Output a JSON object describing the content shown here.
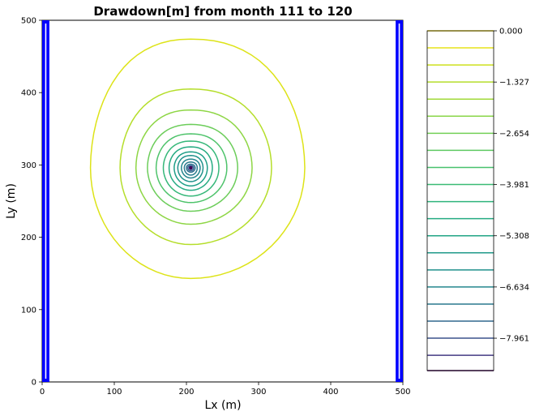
{
  "chart_data": {
    "type": "contour",
    "title": "Drawdown[m] from month 111 to 120",
    "xlabel": "Lx (m)",
    "ylabel": "Ly (m)",
    "xlim": [
      0,
      500
    ],
    "ylim": [
      0,
      500
    ],
    "x_ticks": [
      "0",
      "100",
      "200",
      "300",
      "400",
      "500"
    ],
    "y_ticks": [
      "0",
      "100",
      "200",
      "300",
      "400",
      "500"
    ],
    "well_center": {
      "x": 206,
      "y": 296
    },
    "boundaries": [
      {
        "x_from": 0,
        "x_to": 10,
        "color": "#0000ff"
      },
      {
        "x_from": 490,
        "x_to": 500,
        "color": "#0000ff"
      }
    ],
    "contours": [
      {
        "level": -0.4,
        "xmin": 67,
        "xmax": 364,
        "ymin": 143,
        "ymax": 474,
        "color": "#dde318"
      },
      {
        "level": -0.8,
        "xmin": 108,
        "xmax": 318,
        "ymin": 190,
        "ymax": 405,
        "color": "#b5de2b"
      },
      {
        "level": -1.2,
        "xmin": 130,
        "xmax": 291,
        "ymin": 218,
        "ymax": 376,
        "color": "#8ed645"
      },
      {
        "level": -1.6,
        "xmin": 146,
        "xmax": 271,
        "ymin": 236,
        "ymax": 356,
        "color": "#6ccd5a"
      },
      {
        "level": -2.0,
        "xmin": 158,
        "xmax": 256,
        "ymin": 248,
        "ymax": 343,
        "color": "#4ec36b"
      },
      {
        "level": -2.4,
        "xmin": 168,
        "xmax": 245,
        "ymin": 257,
        "ymax": 333,
        "color": "#35b779"
      },
      {
        "level": -2.9,
        "xmin": 176,
        "xmax": 236,
        "ymin": 265,
        "ymax": 325,
        "color": "#25ab82"
      },
      {
        "level": -3.4,
        "xmin": 183,
        "xmax": 229,
        "ymin": 271,
        "ymax": 318,
        "color": "#1f9f88"
      },
      {
        "level": -4.0,
        "xmin": 188,
        "xmax": 223,
        "ymin": 277,
        "ymax": 313,
        "color": "#20928c"
      },
      {
        "level": -4.6,
        "xmin": 193,
        "xmax": 219,
        "ymin": 282,
        "ymax": 308,
        "color": "#24868e"
      },
      {
        "level": -5.3,
        "xmin": 197,
        "xmax": 215,
        "ymin": 286,
        "ymax": 304,
        "color": "#287c8e"
      },
      {
        "level": -6.0,
        "xmin": 200,
        "xmax": 212,
        "ymin": 290,
        "ymax": 301,
        "color": "#2e6f8e"
      },
      {
        "level": -6.8,
        "xmin": 202,
        "xmax": 210,
        "ymin": 292,
        "ymax": 299,
        "color": "#355f8d"
      },
      {
        "level": -7.6,
        "xmin": 204,
        "xmax": 208,
        "ymin": 294,
        "ymax": 298,
        "color": "#3e4c8a"
      },
      {
        "level": -8.4,
        "xmin": 205,
        "xmax": 207,
        "ymin": 295,
        "ymax": 297,
        "color": "#472d7b"
      }
    ],
    "colorbar": {
      "tick_labels": [
        "0.000",
        "−1.327",
        "−2.654",
        "−3.981",
        "−5.308",
        "−6.634",
        "−7.961"
      ],
      "tick_values": [
        0.0,
        -1.327,
        -2.654,
        -3.981,
        -5.308,
        -6.634,
        -7.961
      ],
      "range": [
        -8.8,
        0.0
      ],
      "levels": [
        {
          "value": 0.0,
          "color": "#fde725"
        },
        {
          "value": -0.442,
          "color": "#e7e419"
        },
        {
          "value": -0.884,
          "color": "#cde11d"
        },
        {
          "value": -1.327,
          "color": "#b5de2b"
        },
        {
          "value": -1.769,
          "color": "#a0da39"
        },
        {
          "value": -2.211,
          "color": "#89d548"
        },
        {
          "value": -2.654,
          "color": "#73d056"
        },
        {
          "value": -3.096,
          "color": "#5ec962"
        },
        {
          "value": -3.538,
          "color": "#48c16e"
        },
        {
          "value": -3.981,
          "color": "#3bbb75"
        },
        {
          "value": -4.423,
          "color": "#2fb47c"
        },
        {
          "value": -4.865,
          "color": "#25ab82"
        },
        {
          "value": -5.308,
          "color": "#21a585"
        },
        {
          "value": -5.75,
          "color": "#1f9a8a"
        },
        {
          "value": -6.192,
          "color": "#21918c"
        },
        {
          "value": -6.634,
          "color": "#24868e"
        },
        {
          "value": -7.077,
          "color": "#2a788e"
        },
        {
          "value": -7.519,
          "color": "#31688e"
        },
        {
          "value": -7.961,
          "color": "#3b528b"
        },
        {
          "value": -8.403,
          "color": "#443a83"
        },
        {
          "value": -8.8,
          "color": "#440154"
        }
      ]
    }
  }
}
